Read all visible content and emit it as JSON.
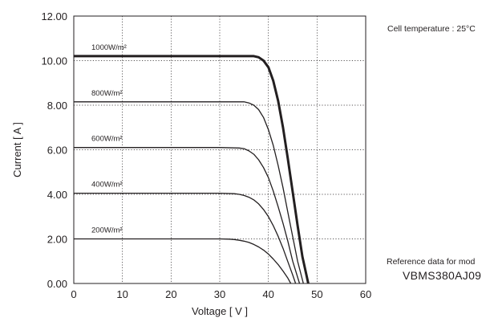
{
  "chart_data": {
    "type": "line",
    "xlabel": "Voltage [ V ]",
    "ylabel": "Current [ A ]",
    "xlim": [
      0,
      60
    ],
    "ylim": [
      0,
      12
    ],
    "x_ticks": [
      "0",
      "10",
      "20",
      "30",
      "40",
      "50",
      "60"
    ],
    "y_ticks": [
      "0.00",
      "2.00",
      "4.00",
      "6.00",
      "8.00",
      "10.00",
      "12.00"
    ],
    "grid": true,
    "series": [
      {
        "name": "1000W/m²",
        "bold": true,
        "points": [
          [
            0,
            10.2
          ],
          [
            30,
            10.2
          ],
          [
            35,
            10.2
          ],
          [
            37,
            10.2
          ],
          [
            38,
            10.15
          ],
          [
            39,
            10.0
          ],
          [
            40,
            9.7
          ],
          [
            41,
            9.1
          ],
          [
            42,
            8.2
          ],
          [
            43,
            7.0
          ],
          [
            44,
            5.6
          ],
          [
            45,
            4.1
          ],
          [
            46,
            2.6
          ],
          [
            47,
            1.2
          ],
          [
            48.2,
            0
          ]
        ]
      },
      {
        "name": "800W/m²",
        "points": [
          [
            0,
            8.15
          ],
          [
            30,
            8.15
          ],
          [
            35,
            8.15
          ],
          [
            36,
            8.1
          ],
          [
            37,
            8.0
          ],
          [
            38,
            7.8
          ],
          [
            39,
            7.45
          ],
          [
            40,
            6.9
          ],
          [
            41,
            6.2
          ],
          [
            42,
            5.3
          ],
          [
            43,
            4.3
          ],
          [
            44,
            3.2
          ],
          [
            45,
            2.1
          ],
          [
            46,
            1.0
          ],
          [
            47.2,
            0
          ]
        ]
      },
      {
        "name": "600W/m²",
        "points": [
          [
            0,
            6.1
          ],
          [
            30,
            6.1
          ],
          [
            34,
            6.08
          ],
          [
            35,
            6.05
          ],
          [
            36,
            5.95
          ],
          [
            37,
            5.8
          ],
          [
            38,
            5.55
          ],
          [
            39,
            5.2
          ],
          [
            40,
            4.75
          ],
          [
            41,
            4.15
          ],
          [
            42,
            3.45
          ],
          [
            43,
            2.7
          ],
          [
            44,
            1.9
          ],
          [
            45,
            1.0
          ],
          [
            46.4,
            0
          ]
        ]
      },
      {
        "name": "400W/m²",
        "points": [
          [
            0,
            4.05
          ],
          [
            30,
            4.05
          ],
          [
            33,
            4.03
          ],
          [
            34,
            4.0
          ],
          [
            35,
            3.95
          ],
          [
            36,
            3.87
          ],
          [
            37,
            3.75
          ],
          [
            38,
            3.57
          ],
          [
            39,
            3.32
          ],
          [
            40,
            3.0
          ],
          [
            41,
            2.6
          ],
          [
            42,
            2.12
          ],
          [
            43,
            1.58
          ],
          [
            44,
            0.98
          ],
          [
            45,
            0.38
          ],
          [
            45.6,
            0
          ]
        ]
      },
      {
        "name": "200W/m²",
        "points": [
          [
            0,
            2.0
          ],
          [
            30,
            2.0
          ],
          [
            32,
            1.99
          ],
          [
            33,
            1.97
          ],
          [
            34,
            1.94
          ],
          [
            35,
            1.9
          ],
          [
            36,
            1.84
          ],
          [
            37,
            1.75
          ],
          [
            38,
            1.64
          ],
          [
            39,
            1.5
          ],
          [
            40,
            1.32
          ],
          [
            41,
            1.1
          ],
          [
            42,
            0.85
          ],
          [
            43,
            0.56
          ],
          [
            44,
            0.24
          ],
          [
            44.6,
            0
          ]
        ]
      }
    ],
    "annotations": {
      "temperature": "Cell temperature : 25°C",
      "reference": "Reference data for mod",
      "model": "VBMS380AJ09"
    }
  },
  "colors": {
    "line": "#231f20",
    "grid": "#231f20",
    "background": "#ffffff"
  }
}
